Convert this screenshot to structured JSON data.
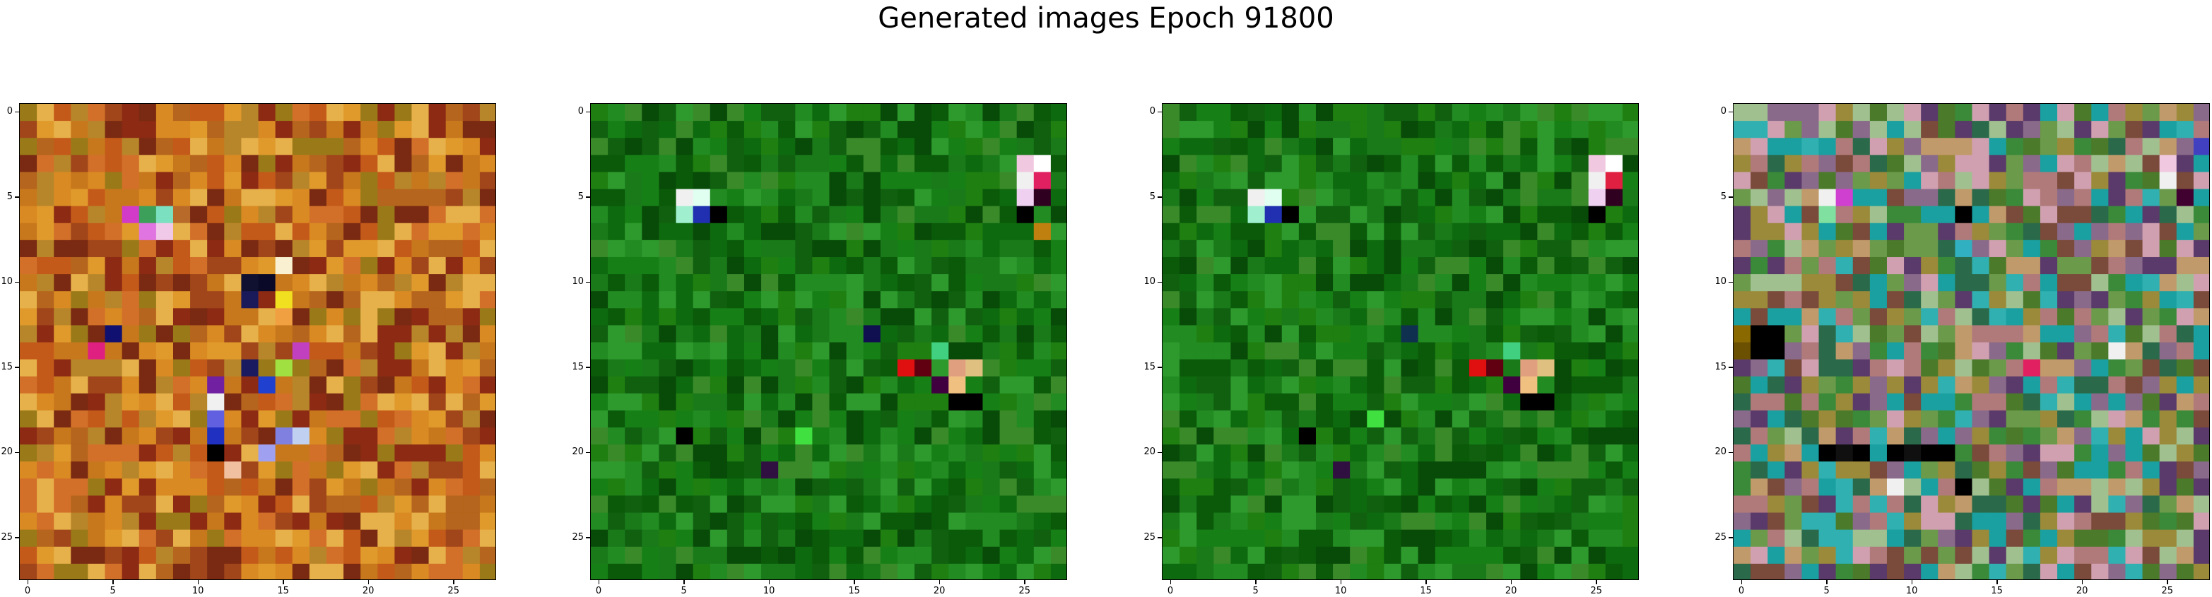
{
  "title": "Generated images Epoch 91800",
  "chart_data": {
    "type": "heatmap",
    "title": "Generated images Epoch 91800",
    "description_of_content": "four 28x28 RGB pixel-noise images",
    "grid_size": 28,
    "xlim": [
      -0.5,
      27.5
    ],
    "ylim": [
      27.5,
      -0.5
    ],
    "xticks": [
      0,
      5,
      10,
      15,
      20,
      25
    ],
    "yticks": [
      0,
      5,
      10,
      15,
      20,
      25
    ],
    "panels": [
      {
        "palette": [
          "#b5651d",
          "#c8781c",
          "#d98a22",
          "#a0461a",
          "#8c2a14",
          "#e09a2c",
          "#c45a1a",
          "#9a7a18",
          "#b8862a",
          "#7a2a12",
          "#d2702a",
          "#e6b04a"
        ],
        "accents": [
          {
            "r": 6,
            "c": 6,
            "color": "#d23ac8"
          },
          {
            "r": 6,
            "c": 7,
            "color": "#3ca05a"
          },
          {
            "r": 6,
            "c": 8,
            "color": "#7ae0c0"
          },
          {
            "r": 6,
            "c": 9,
            "color": "#b86a2a"
          },
          {
            "r": 7,
            "c": 7,
            "color": "#e074e0"
          },
          {
            "r": 7,
            "c": 8,
            "color": "#f0c8e8"
          },
          {
            "r": 9,
            "c": 15,
            "color": "#f8f0d0"
          },
          {
            "r": 10,
            "c": 13,
            "color": "#101030"
          },
          {
            "r": 10,
            "c": 14,
            "color": "#0a0a28"
          },
          {
            "r": 11,
            "c": 13,
            "color": "#1a1a5a"
          },
          {
            "r": 11,
            "c": 15,
            "color": "#f0e020"
          },
          {
            "r": 12,
            "c": 15,
            "color": "#f0a040"
          },
          {
            "r": 13,
            "c": 5,
            "color": "#101070"
          },
          {
            "r": 14,
            "c": 4,
            "color": "#e02080"
          },
          {
            "r": 14,
            "c": 16,
            "color": "#c040c0"
          },
          {
            "r": 15,
            "c": 13,
            "color": "#1a1a60"
          },
          {
            "r": 15,
            "c": 15,
            "color": "#a0e040"
          },
          {
            "r": 16,
            "c": 11,
            "color": "#7020a0"
          },
          {
            "r": 17,
            "c": 11,
            "color": "#f0f0f0"
          },
          {
            "r": 18,
            "c": 11,
            "color": "#6060e0"
          },
          {
            "r": 19,
            "c": 11,
            "color": "#2030c0"
          },
          {
            "r": 19,
            "c": 15,
            "color": "#8080e0"
          },
          {
            "r": 19,
            "c": 16,
            "color": "#c0d0f0"
          },
          {
            "r": 20,
            "c": 11,
            "color": "#000000"
          },
          {
            "r": 20,
            "c": 14,
            "color": "#a0a0f0"
          },
          {
            "r": 16,
            "c": 14,
            "color": "#2040d0"
          },
          {
            "r": 21,
            "c": 12,
            "color": "#f0c0a0"
          }
        ]
      },
      {
        "palette": [
          "#1a7a1a",
          "#0e6a0e",
          "#228b22",
          "#0a5a0a",
          "#2e9a2e",
          "#106010",
          "#1f7f10",
          "#3a8a2a",
          "#084a08",
          "#168016"
        ],
        "accents": [
          {
            "r": 5,
            "c": 5,
            "color": "#f0f0f0"
          },
          {
            "r": 5,
            "c": 6,
            "color": "#e0fff0"
          },
          {
            "r": 6,
            "c": 5,
            "color": "#a0f0d0"
          },
          {
            "r": 6,
            "c": 6,
            "color": "#2030b0"
          },
          {
            "r": 6,
            "c": 7,
            "color": "#000000"
          },
          {
            "r": 3,
            "c": 25,
            "color": "#f0c8e0"
          },
          {
            "r": 3,
            "c": 26,
            "color": "#ffffff"
          },
          {
            "r": 4,
            "c": 25,
            "color": "#f0f0f0"
          },
          {
            "r": 4,
            "c": 26,
            "color": "#e02060"
          },
          {
            "r": 5,
            "c": 25,
            "color": "#f0d0f0"
          },
          {
            "r": 5,
            "c": 26,
            "color": "#300020"
          },
          {
            "r": 6,
            "c": 25,
            "color": "#000000"
          },
          {
            "r": 7,
            "c": 26,
            "color": "#c08010"
          },
          {
            "r": 15,
            "c": 18,
            "color": "#e01010"
          },
          {
            "r": 15,
            "c": 19,
            "color": "#600010"
          },
          {
            "r": 15,
            "c": 21,
            "color": "#e0a080"
          },
          {
            "r": 15,
            "c": 22,
            "color": "#e0c080"
          },
          {
            "r": 16,
            "c": 20,
            "color": "#400040"
          },
          {
            "r": 16,
            "c": 21,
            "color": "#f0c080"
          },
          {
            "r": 17,
            "c": 21,
            "color": "#000000"
          },
          {
            "r": 17,
            "c": 22,
            "color": "#000000"
          },
          {
            "r": 13,
            "c": 16,
            "color": "#101050"
          },
          {
            "r": 19,
            "c": 5,
            "color": "#000000"
          },
          {
            "r": 21,
            "c": 10,
            "color": "#301040"
          },
          {
            "r": 19,
            "c": 12,
            "color": "#40e040"
          },
          {
            "r": 14,
            "c": 20,
            "color": "#40d080"
          }
        ]
      },
      {
        "palette": [
          "#1a7a1a",
          "#0e6a0e",
          "#228b22",
          "#0a5a0a",
          "#2e9a2e",
          "#106010",
          "#1f7f10",
          "#3a8a2a",
          "#084a08",
          "#168016"
        ],
        "accents": [
          {
            "r": 5,
            "c": 5,
            "color": "#f0f0f0"
          },
          {
            "r": 5,
            "c": 6,
            "color": "#e0fff0"
          },
          {
            "r": 6,
            "c": 5,
            "color": "#a0f0d0"
          },
          {
            "r": 6,
            "c": 6,
            "color": "#2030b0"
          },
          {
            "r": 6,
            "c": 7,
            "color": "#000000"
          },
          {
            "r": 3,
            "c": 25,
            "color": "#f0c8e0"
          },
          {
            "r": 3,
            "c": 26,
            "color": "#ffffff"
          },
          {
            "r": 4,
            "c": 25,
            "color": "#f0f0f0"
          },
          {
            "r": 4,
            "c": 26,
            "color": "#e02040"
          },
          {
            "r": 5,
            "c": 25,
            "color": "#f0d0f0"
          },
          {
            "r": 5,
            "c": 26,
            "color": "#300020"
          },
          {
            "r": 6,
            "c": 25,
            "color": "#000000"
          },
          {
            "r": 15,
            "c": 18,
            "color": "#e01010"
          },
          {
            "r": 15,
            "c": 19,
            "color": "#600010"
          },
          {
            "r": 15,
            "c": 21,
            "color": "#e0a080"
          },
          {
            "r": 15,
            "c": 22,
            "color": "#e0c080"
          },
          {
            "r": 16,
            "c": 20,
            "color": "#400040"
          },
          {
            "r": 16,
            "c": 21,
            "color": "#f0c080"
          },
          {
            "r": 17,
            "c": 21,
            "color": "#000000"
          },
          {
            "r": 17,
            "c": 22,
            "color": "#000000"
          },
          {
            "r": 13,
            "c": 14,
            "color": "#103050"
          },
          {
            "r": 19,
            "c": 8,
            "color": "#000000"
          },
          {
            "r": 21,
            "c": 10,
            "color": "#301040"
          },
          {
            "r": 18,
            "c": 12,
            "color": "#40e040"
          },
          {
            "r": 14,
            "c": 20,
            "color": "#40d080"
          }
        ]
      },
      {
        "palette": [
          "#3a8a3a",
          "#8a6a8a",
          "#c09a6a",
          "#2a6a4a",
          "#b07a7a",
          "#6a9a4a",
          "#1aa0a0",
          "#9a8a3a",
          "#5a3a6a",
          "#d0a0b0",
          "#4a7a2a",
          "#a0c090",
          "#7a4a3a",
          "#30b0b0"
        ],
        "accents": [
          {
            "r": 5,
            "c": 5,
            "color": "#f0f0f0"
          },
          {
            "r": 5,
            "c": 6,
            "color": "#d040d0"
          },
          {
            "r": 6,
            "c": 5,
            "color": "#80e0a0"
          },
          {
            "r": 3,
            "c": 25,
            "color": "#f0c8e0"
          },
          {
            "r": 4,
            "c": 25,
            "color": "#f0f0f0"
          },
          {
            "r": 5,
            "c": 26,
            "color": "#400030"
          },
          {
            "r": 2,
            "c": 27,
            "color": "#4040c0"
          },
          {
            "r": 13,
            "c": 1,
            "color": "#000000"
          },
          {
            "r": 13,
            "c": 2,
            "color": "#000000"
          },
          {
            "r": 14,
            "c": 1,
            "color": "#000000"
          },
          {
            "r": 14,
            "c": 2,
            "color": "#000000"
          },
          {
            "r": 13,
            "c": 0,
            "color": "#8a6a00"
          },
          {
            "r": 14,
            "c": 0,
            "color": "#6a5000"
          },
          {
            "r": 20,
            "c": 5,
            "color": "#000000"
          },
          {
            "r": 20,
            "c": 6,
            "color": "#101010"
          },
          {
            "r": 20,
            "c": 7,
            "color": "#000000"
          },
          {
            "r": 20,
            "c": 9,
            "color": "#000000"
          },
          {
            "r": 20,
            "c": 10,
            "color": "#101010"
          },
          {
            "r": 20,
            "c": 11,
            "color": "#000000"
          },
          {
            "r": 20,
            "c": 12,
            "color": "#000000"
          },
          {
            "r": 22,
            "c": 9,
            "color": "#f0f0f0"
          },
          {
            "r": 22,
            "c": 13,
            "color": "#000000"
          },
          {
            "r": 6,
            "c": 13,
            "color": "#000000"
          },
          {
            "r": 8,
            "c": 13,
            "color": "#30b0c0"
          },
          {
            "r": 14,
            "c": 22,
            "color": "#f0f0f0"
          },
          {
            "r": 15,
            "c": 17,
            "color": "#e02060"
          }
        ]
      }
    ]
  }
}
